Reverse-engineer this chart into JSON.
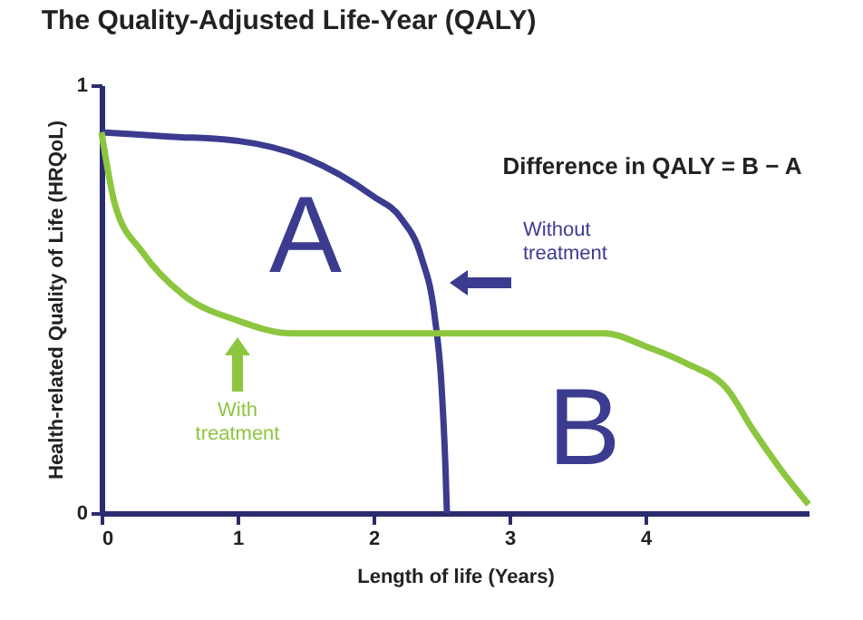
{
  "chart_data": {
    "type": "line",
    "title": "The Quality-Adjusted Life-Year (QALY)",
    "xlabel": "Length of life (Years)",
    "ylabel": "Health-related Quality of Life (HRQoL)",
    "xlim": [
      0,
      5.2
    ],
    "xticks": [
      0,
      1,
      2,
      3,
      4
    ],
    "ylim": [
      0,
      1
    ],
    "yticks": [
      0,
      1
    ],
    "series": [
      {
        "name": "Without treatment",
        "color": "#3b3b8f",
        "x": [
          0,
          0.5,
          1,
          1.5,
          2,
          2.2,
          2.35,
          2.45,
          2.5,
          2.53,
          2.54
        ],
        "values": [
          0.89,
          0.88,
          0.87,
          0.83,
          0.74,
          0.69,
          0.6,
          0.46,
          0.3,
          0.1,
          0
        ]
      },
      {
        "name": "With treatment",
        "color": "#8cc63f",
        "x": [
          0,
          0.1,
          0.3,
          0.6,
          1,
          1.4,
          2,
          3,
          3.7,
          4,
          4.3,
          4.6,
          4.8,
          5.0,
          5.2
        ],
        "values": [
          0.89,
          0.72,
          0.61,
          0.51,
          0.45,
          0.42,
          0.42,
          0.42,
          0.42,
          0.39,
          0.35,
          0.29,
          0.19,
          0.1,
          0.02
        ]
      }
    ],
    "annotations": [
      "A",
      "B",
      "Difference in QALY = B − A"
    ]
  }
}
